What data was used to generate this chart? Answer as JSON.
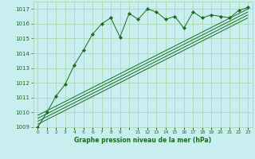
{
  "title": "Graphe pression niveau de la mer (hPa)",
  "bg_color": "#c8eef0",
  "grid_color": "#a8d4a8",
  "line_color": "#1a6b1a",
  "xlim": [
    -0.5,
    23.5
  ],
  "ylim": [
    1009.0,
    1017.5
  ],
  "yticks": [
    1009,
    1010,
    1011,
    1012,
    1013,
    1014,
    1015,
    1016,
    1017
  ],
  "xtick_positions": [
    0,
    1,
    2,
    3,
    4,
    5,
    6,
    7,
    8,
    9,
    10,
    11,
    12,
    13,
    14,
    15,
    16,
    17,
    18,
    19,
    20,
    21,
    22,
    23
  ],
  "xtick_labels": [
    "0",
    "1",
    "2",
    "3",
    "4",
    "5",
    "6",
    "7",
    "8",
    "9",
    "",
    "11",
    "12",
    "13",
    "14",
    "15",
    "16",
    "17",
    "18",
    "19",
    "20",
    "21",
    "22",
    "23"
  ],
  "main_x": [
    0,
    1,
    2,
    3,
    4,
    5,
    6,
    7,
    8,
    9,
    10,
    11,
    12,
    13,
    14,
    15,
    16,
    17,
    18,
    19,
    20,
    21,
    22,
    23
  ],
  "main_y": [
    1009.0,
    1010.0,
    1011.1,
    1011.9,
    1013.2,
    1014.2,
    1015.3,
    1016.0,
    1016.4,
    1015.1,
    1016.7,
    1016.3,
    1017.0,
    1016.8,
    1016.3,
    1016.5,
    1015.7,
    1016.8,
    1016.4,
    1016.6,
    1016.5,
    1016.4,
    1016.9,
    1017.1
  ],
  "trend_lines": [
    {
      "x": [
        0,
        23
      ],
      "y": [
        1009.2,
        1016.4
      ]
    },
    {
      "x": [
        0,
        23
      ],
      "y": [
        1009.4,
        1016.6
      ]
    },
    {
      "x": [
        0,
        23
      ],
      "y": [
        1009.6,
        1016.8
      ]
    },
    {
      "x": [
        0,
        23
      ],
      "y": [
        1009.8,
        1017.0
      ]
    }
  ]
}
